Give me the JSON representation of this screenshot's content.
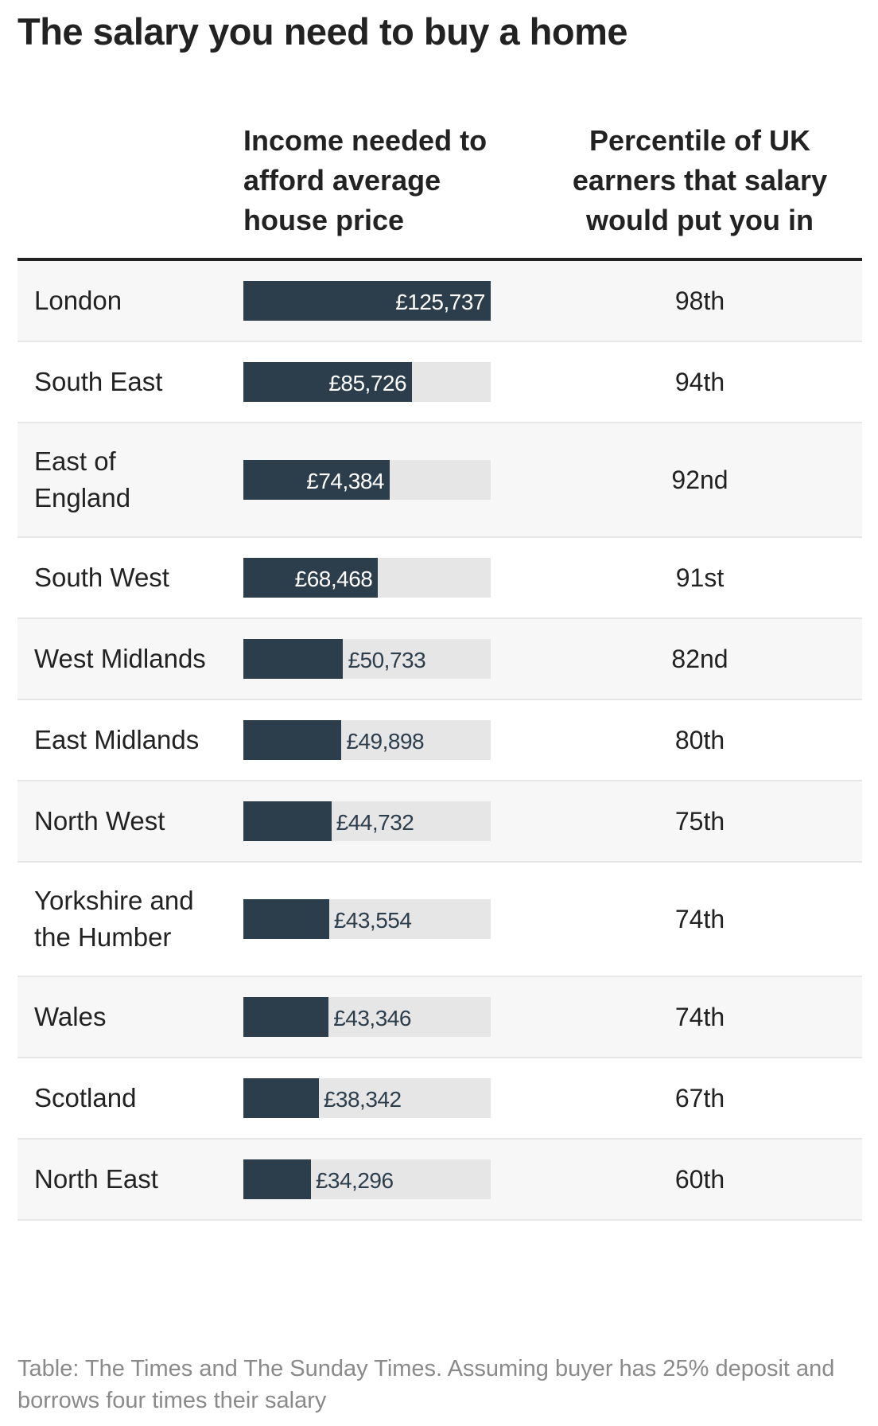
{
  "title": "The salary you need to buy a home",
  "table": {
    "headers": [
      "Income needed to afford average house price",
      "Percentile of UK earners that salary would put you in"
    ],
    "rows": [
      {
        "region": "London",
        "income": 125737,
        "income_label": "£125,737",
        "percentile": "98th"
      },
      {
        "region": "South East",
        "income": 85726,
        "income_label": "£85,726",
        "percentile": "94th"
      },
      {
        "region": "East of England",
        "income": 74384,
        "income_label": "£74,384",
        "percentile": "92nd"
      },
      {
        "region": "South West",
        "income": 68468,
        "income_label": "£68,468",
        "percentile": "91st"
      },
      {
        "region": "West Midlands",
        "income": 50733,
        "income_label": "£50,733",
        "percentile": "82nd"
      },
      {
        "region": "East Midlands",
        "income": 49898,
        "income_label": "£49,898",
        "percentile": "80th"
      },
      {
        "region": "North West",
        "income": 44732,
        "income_label": "£44,732",
        "percentile": "75th"
      },
      {
        "region": "Yorkshire and the Humber",
        "income": 43554,
        "income_label": "£43,554",
        "percentile": "74th"
      },
      {
        "region": "Wales",
        "income": 43346,
        "income_label": "£43,346",
        "percentile": "74th"
      },
      {
        "region": "Scotland",
        "income": 38342,
        "income_label": "£38,342",
        "percentile": "67th"
      },
      {
        "region": "North East",
        "income": 34296,
        "income_label": "£34,296",
        "percentile": "60th"
      }
    ]
  },
  "note": "Table: The Times and The Sunday Times. Assuming buyer has 25% deposit and borrows four times their salary"
}
